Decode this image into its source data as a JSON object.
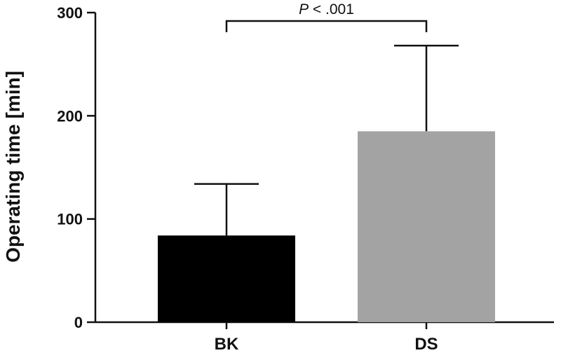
{
  "chart_data": {
    "type": "bar",
    "title": "",
    "xlabel": "",
    "ylabel": "Operating time [min]",
    "ylim": [
      0,
      300
    ],
    "yticks": [
      0,
      100,
      200,
      300
    ],
    "grid": false,
    "categories": [
      "BK",
      "DS"
    ],
    "values": [
      84,
      185
    ],
    "error_upper": [
      134,
      268
    ],
    "colors": [
      "#000000",
      "#a3a3a3"
    ],
    "significance": {
      "from": "BK",
      "to": "DS",
      "level": 300,
      "label_italic": "P",
      "label_rest": " < .001"
    }
  }
}
